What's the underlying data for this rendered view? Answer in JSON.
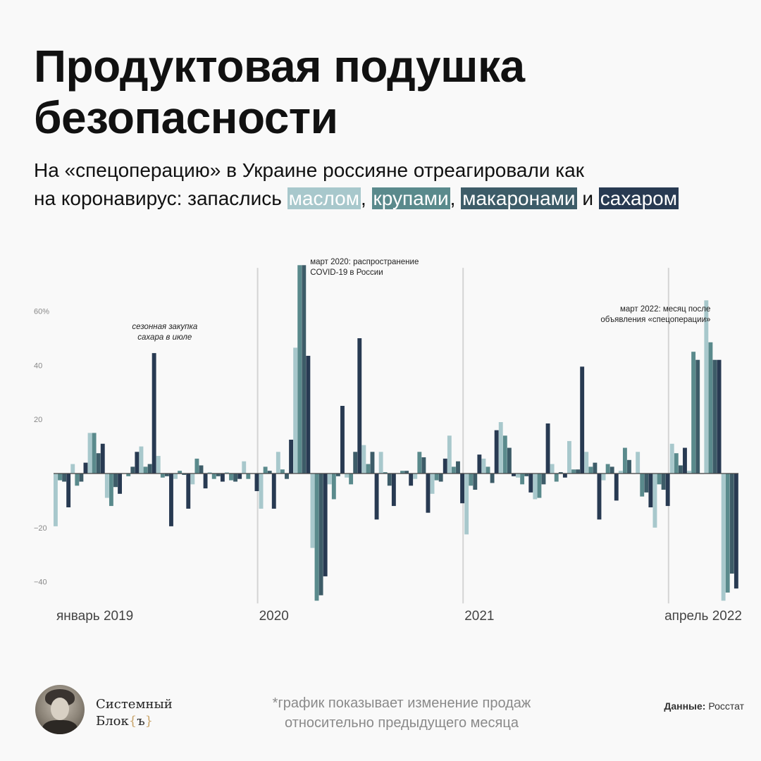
{
  "title_line1": "Продуктовая подушка",
  "title_line2": "безопасности",
  "subtitle": {
    "line1": "На «спецоперацию» в Украине россияне отреагировали как",
    "line2_prefix": "на коронавирус: запаслись ",
    "oil": "маслом",
    "sep1": ", ",
    "groats": "крупами",
    "sep2": ", ",
    "pasta": "макаронами",
    "and": " и ",
    "sugar": "сахаром"
  },
  "colors": {
    "oil": "#a8c8cc",
    "groats": "#5a8a8c",
    "pasta": "#3d5c68",
    "sugar": "#283a52",
    "gridline": "#d4d4d4",
    "axis": "#444444"
  },
  "chart_data": {
    "type": "bar",
    "ylim": [
      -47,
      77
    ],
    "y_ticks": [
      {
        "value": 60,
        "label": "60%"
      },
      {
        "value": 40,
        "label": "40"
      },
      {
        "value": 20,
        "label": "20"
      },
      {
        "value": -20,
        "label": "−20"
      },
      {
        "value": -40,
        "label": "−40"
      }
    ],
    "x_labels": [
      {
        "index": 0,
        "label": "январь 2019"
      },
      {
        "index": 12,
        "label": "2020"
      },
      {
        "index": 24,
        "label": "2021"
      },
      {
        "index": 39,
        "label": "апрель 2022"
      }
    ],
    "period_starts": [
      12,
      24,
      36
    ],
    "annotations": [
      {
        "text": [
          "сезонная закупка",
          "сахара в июле"
        ],
        "italic": true,
        "month_index": 6,
        "value": 53
      },
      {
        "text": [
          "март 2020: распространение",
          "COVID-19 в России"
        ],
        "italic": false,
        "month_index": 14,
        "value": 78
      },
      {
        "text": [
          "март 2022: месяц после",
          "объявления «спецоперации»"
        ],
        "italic": false,
        "month_index": 38,
        "value": 61
      }
    ],
    "categories": [
      "2019-01",
      "2019-02",
      "2019-03",
      "2019-04",
      "2019-05",
      "2019-06",
      "2019-07",
      "2019-08",
      "2019-09",
      "2019-10",
      "2019-11",
      "2019-12",
      "2020-01",
      "2020-02",
      "2020-03",
      "2020-04",
      "2020-05",
      "2020-06",
      "2020-07",
      "2020-08",
      "2020-09",
      "2020-10",
      "2020-11",
      "2020-12",
      "2021-01",
      "2021-02",
      "2021-03",
      "2021-04",
      "2021-05",
      "2021-06",
      "2021-07",
      "2021-08",
      "2021-09",
      "2021-10",
      "2021-11",
      "2021-12",
      "2022-01",
      "2022-02",
      "2022-03",
      "2022-04"
    ],
    "series": [
      {
        "name": "маслом",
        "color_key": "oil",
        "values": [
          -19.5,
          3.5,
          15,
          -9,
          0,
          10,
          6.5,
          -2,
          -4,
          0.5,
          0.5,
          4.5,
          -13,
          8,
          46.5,
          -27.5,
          -4,
          -1.5,
          10.5,
          8,
          0,
          -2,
          -7.5,
          14,
          -22.5,
          5.5,
          19,
          -1.5,
          -9.5,
          3.5,
          12,
          8,
          -2.5,
          1,
          8,
          -20,
          11,
          1,
          64,
          -47
        ]
      },
      {
        "name": "крупами",
        "color_key": "groats",
        "values": [
          -2.5,
          -4.5,
          15,
          -12,
          -1,
          2.5,
          -1.5,
          1,
          5.5,
          -2,
          -2.5,
          -2,
          2.5,
          1.5,
          77,
          -47,
          -9.5,
          -4,
          3.5,
          0.5,
          1,
          8,
          -2.5,
          2.5,
          -4.5,
          2.5,
          14,
          -4,
          -9,
          -3,
          1.5,
          2.5,
          3.5,
          9.5,
          -8.5,
          -4,
          7.5,
          45,
          48.5,
          -44
        ]
      },
      {
        "name": "макаронами",
        "color_key": "pasta",
        "values": [
          -3,
          -3,
          7.5,
          -5,
          2.5,
          3.5,
          -1,
          -0.5,
          3,
          -1,
          -3,
          0,
          1,
          -2,
          77,
          -45,
          -1,
          8,
          8,
          -4.5,
          1,
          6,
          -3,
          4.5,
          -6,
          -3.5,
          9.5,
          -1,
          -4,
          0.5,
          1.5,
          4,
          2.5,
          5,
          -7,
          -6,
          3,
          42,
          42,
          -37
        ]
      },
      {
        "name": "сахаром",
        "color_key": "sugar",
        "values": [
          -12.5,
          4,
          11,
          -7.5,
          8,
          44.5,
          -19.5,
          -13,
          -5.5,
          -3,
          -2,
          -6.5,
          -13,
          12.5,
          43.5,
          -38,
          25,
          50,
          -17,
          -12,
          -4.5,
          -14.5,
          5.5,
          -11,
          7,
          16,
          -1,
          -7,
          18.5,
          -1.5,
          39.5,
          -17,
          -10,
          0,
          -12.5,
          -12,
          9.5,
          0,
          42,
          -42.5
        ]
      }
    ]
  },
  "footer": {
    "brand_line1": "Системный",
    "brand_line2_word": "Блок",
    "brand_brace_open": "{",
    "brand_brace_char": "ъ",
    "brand_brace_close": "}",
    "note_line1": "*график показывает изменение продаж",
    "note_line2": "относительно предыдущего месяца",
    "source_label": "Данные:",
    "source_value": "Росстат"
  }
}
